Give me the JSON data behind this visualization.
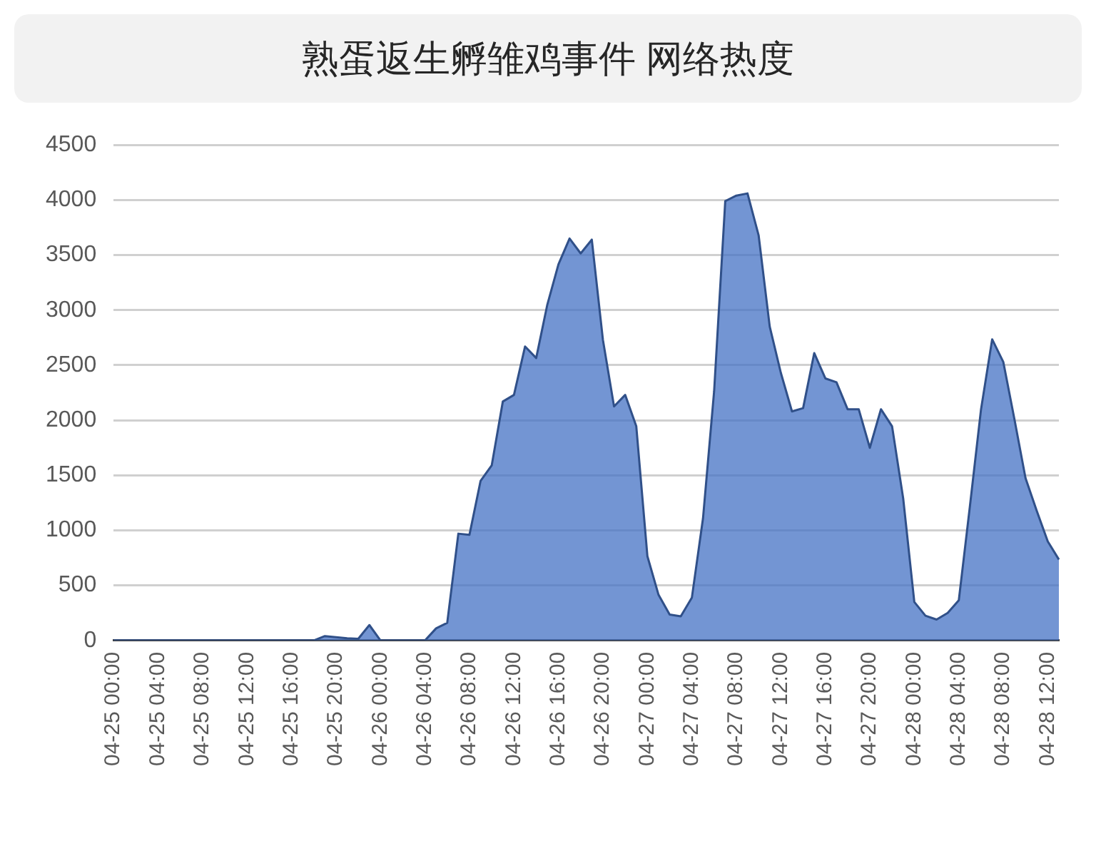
{
  "chart_data": {
    "type": "area",
    "title": "熟蛋返生孵雏鸡事件 网络热度",
    "categories": [
      "04-25 00:00",
      null,
      null,
      null,
      "04-25 04:00",
      null,
      null,
      null,
      "04-25 08:00",
      null,
      null,
      null,
      "04-25 12:00",
      null,
      null,
      null,
      "04-25 16:00",
      null,
      null,
      null,
      "04-25 20:00",
      null,
      null,
      null,
      "04-26 00:00",
      null,
      null,
      null,
      "04-26 04:00",
      null,
      null,
      null,
      "04-26 08:00",
      null,
      null,
      null,
      "04-26 12:00",
      null,
      null,
      null,
      "04-26 16:00",
      null,
      null,
      null,
      "04-26 20:00",
      null,
      null,
      null,
      "04-27 00:00",
      null,
      null,
      null,
      "04-27 04:00",
      null,
      null,
      null,
      "04-27 08:00",
      null,
      null,
      null,
      "04-27 12:00",
      null,
      null,
      null,
      "04-27 16:00",
      null,
      null,
      null,
      "04-27 20:00",
      null,
      null,
      null,
      "04-28 00:00",
      null,
      null,
      null,
      "04-28 04:00",
      null,
      null,
      null,
      "04-28 08:00",
      null,
      null,
      null,
      "04-28 12:00",
      null
    ],
    "series": [
      {
        "color": "#4472c4",
        "values": [
          0,
          0,
          0,
          0,
          0,
          0,
          0,
          0,
          0,
          0,
          0,
          0,
          0,
          0,
          0,
          0,
          0,
          0,
          0,
          40,
          30,
          20,
          15,
          140,
          0,
          0,
          0,
          0,
          0,
          110,
          160,
          970,
          960,
          1450,
          1590,
          2170,
          2230,
          2670,
          2565,
          3050,
          3415,
          3650,
          3515,
          3640,
          2730,
          2125,
          2230,
          1945,
          765,
          415,
          235,
          220,
          390,
          1110,
          2265,
          3990,
          4040,
          4060,
          3680,
          2850,
          2430,
          2080,
          2110,
          2610,
          2380,
          2345,
          2100,
          2100,
          1750,
          2100,
          1945,
          1290,
          350,
          225,
          190,
          250,
          365,
          1220,
          2100,
          2735,
          2530,
          2010,
          1475,
          1180,
          900,
          735
        ]
      }
    ],
    "ylim": [
      0,
      4500
    ],
    "yticks": [
      0,
      500,
      1000,
      1500,
      2000,
      2500,
      3000,
      3500,
      4000,
      4500
    ],
    "grid": "y",
    "legend": false
  }
}
